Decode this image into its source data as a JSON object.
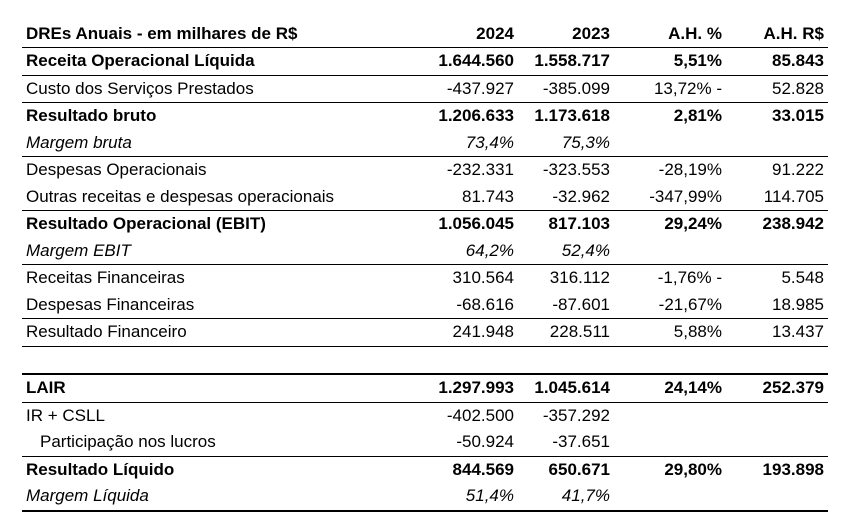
{
  "header": {
    "title": "DREs Anuais - em milhares de R$",
    "col_2024": "2024",
    "col_2023": "2023",
    "col_ah_pct": "A.H. %",
    "col_ah_rs": "A.H. R$"
  },
  "rows": [
    {
      "label": "Receita Operacional Líquida",
      "v2024": "1.644.560",
      "v2023": "1.558.717",
      "ah_pct": "5,51%",
      "ah_rs": "85.843"
    },
    {
      "label": "Custo dos Serviços Prestados",
      "v2024": "-437.927",
      "v2023": "-385.099",
      "ah_pct": "13,72% -",
      "ah_rs": "52.828"
    },
    {
      "label": "Resultado bruto",
      "v2024": "1.206.633",
      "v2023": "1.173.618",
      "ah_pct": "2,81%",
      "ah_rs": "33.015"
    },
    {
      "label": "Margem bruta",
      "v2024": "73,4%",
      "v2023": "75,3%",
      "ah_pct": "",
      "ah_rs": ""
    },
    {
      "label": "Despesas Operacionais",
      "v2024": "-232.331",
      "v2023": "-323.553",
      "ah_pct": "-28,19%",
      "ah_rs": "91.222"
    },
    {
      "label": "Outras receitas e despesas operacionais",
      "v2024": "81.743",
      "v2023": "-32.962",
      "ah_pct": "-347,99%",
      "ah_rs": "114.705"
    },
    {
      "label": "Resultado Operacional (EBIT)",
      "v2024": "1.056.045",
      "v2023": "817.103",
      "ah_pct": "29,24%",
      "ah_rs": "238.942"
    },
    {
      "label": "Margem EBIT",
      "v2024": "64,2%",
      "v2023": "52,4%",
      "ah_pct": "",
      "ah_rs": ""
    },
    {
      "label": "Receitas Financeiras",
      "v2024": "310.564",
      "v2023": "316.112",
      "ah_pct": "-1,76% -",
      "ah_rs": "5.548"
    },
    {
      "label": "Despesas Financeiras",
      "v2024": "-68.616",
      "v2023": "-87.601",
      "ah_pct": "-21,67%",
      "ah_rs": "18.985"
    },
    {
      "label": "Resultado Financeiro",
      "v2024": "241.948",
      "v2023": "228.511",
      "ah_pct": "5,88%",
      "ah_rs": "13.437"
    },
    {
      "label": "LAIR",
      "v2024": "1.297.993",
      "v2023": "1.045.614",
      "ah_pct": "24,14%",
      "ah_rs": "252.379"
    },
    {
      "label": "IR + CSLL",
      "v2024": "-402.500",
      "v2023": "-357.292",
      "ah_pct": "",
      "ah_rs": ""
    },
    {
      "label": "Participação nos lucros",
      "v2024": "-50.924",
      "v2023": "-37.651",
      "ah_pct": "",
      "ah_rs": ""
    },
    {
      "label": "Resultado Líquido",
      "v2024": "844.569",
      "v2023": "650.671",
      "ah_pct": "29,80%",
      "ah_rs": "193.898"
    },
    {
      "label": "Margem Líquida",
      "v2024": "51,4%",
      "v2023": "41,7%",
      "ah_pct": "",
      "ah_rs": ""
    }
  ]
}
